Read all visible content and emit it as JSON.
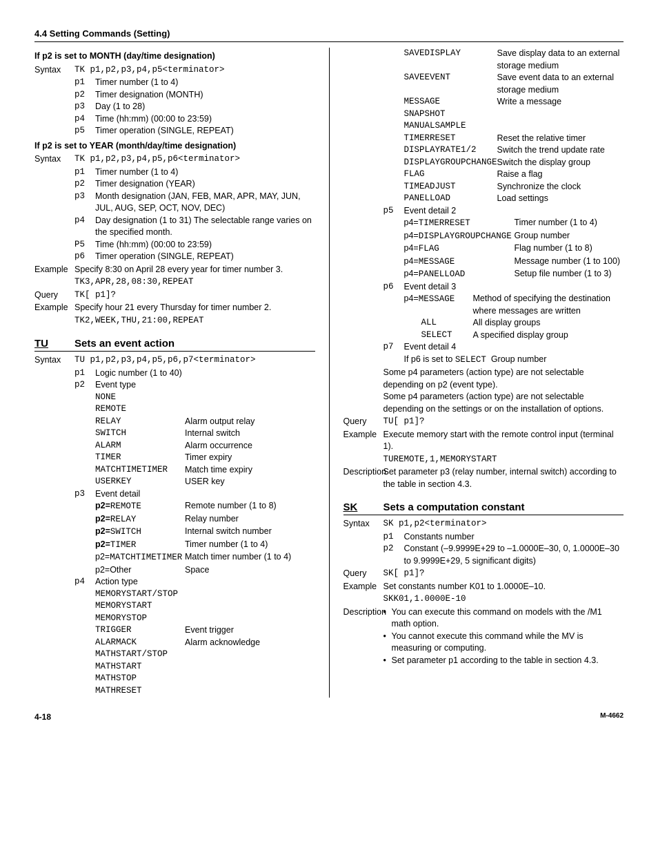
{
  "header": "4.4  Setting Commands (Setting)",
  "month": {
    "title": "If p2 is set to MONTH (day/time designation)",
    "syntax_label": "Syntax",
    "syntax": "TK p1,p2,p3,p4,p5<terminator>",
    "p1": "Timer number (1 to 4)",
    "p2": "Timer designation (MONTH)",
    "p3": "Day (1 to 28)",
    "p4": "Time (hh:mm) (00:00 to 23:59)",
    "p5": "Timer operation (SINGLE, REPEAT)"
  },
  "year": {
    "title": "If p2 is set to YEAR (month/day/time designation)",
    "syntax_label": "Syntax",
    "syntax": "TK p1,p2,p3,p4,p5,p6<terminator>",
    "p1": "Timer number (1 to 4)",
    "p2": "Timer designation (YEAR)",
    "p3": "Month designation (JAN, FEB, MAR, APR, MAY, JUN, JUL, AUG, SEP, OCT, NOV, DEC)",
    "p4": "Day designation (1 to 31)  The selectable range varies on the specified month.",
    "p5": "Time (hh:mm) (00:00 to 23:59)",
    "p6": "Timer operation (SINGLE, REPEAT)",
    "example_label": "Example",
    "example_text": "Specify 8:30 on April 28 every year for timer number 3.",
    "example_cmd": "TK3,APR,28,08:30,REPEAT",
    "query_label": "Query",
    "query_cmd": "TK[ p1]?",
    "example2_label": "Example",
    "example2_text": "Specify hour 21 every Thursday for timer number 2.",
    "example2_cmd": "TK2,WEEK,THU,21:00,REPEAT"
  },
  "tu": {
    "name": "TU",
    "title": "Sets an event action",
    "syntax_label": "Syntax",
    "syntax": "TU p1,p2,p3,p4,p5,p6,p7<terminator>",
    "p1": "Logic number (1 to 40)",
    "p2": "Event type",
    "p2_opts": {
      "NONE": "",
      "REMOTE": "",
      "RELAY": "Alarm output relay",
      "SWITCH": "Internal switch",
      "ALARM": "Alarm occurrence",
      "TIMER": "Timer expiry",
      "MATCHTIMETIMER": "Match time expiry",
      "USERKEY": "USER key"
    },
    "p3": "Event detail",
    "p3_rows": [
      {
        "k": "p2=",
        "kv": "REMOTE",
        "v": "Remote number (1 to 8)"
      },
      {
        "k": "p2=",
        "kv": "RELAY",
        "v": "Relay number"
      },
      {
        "k": "p2=",
        "kv": "SWITCH",
        "v": "Internal switch number"
      },
      {
        "k": "p2=",
        "kv": "TIMER",
        "v": "Timer number (1 to 4)"
      }
    ],
    "p3_match_k": "p2=",
    "p3_match_kv": "MATCHTIMETIMER",
    "p3_match_v": "Match timer number (1 to 4)",
    "p3_other_k": "p2=Other",
    "p3_other_v": "Space",
    "p4": "Action type",
    "p4_opts": {
      "MEMORYSTART/STOP": "",
      "MEMORYSTART": "",
      "MEMORYSTOP": "",
      "TRIGGER": "Event trigger",
      "ALARMACK": "Alarm acknowledge",
      "MATHSTART/STOP": "",
      "MATHSTART": "",
      "MATHSTOP": "",
      "MATHRESET": ""
    }
  },
  "tu2": {
    "p4_opts2": {
      "SAVEDISPLAY": "Save display data to an external storage medium",
      "SAVEEVENT": "Save event data to an external storage medium",
      "MESSAGE": "Write a message",
      "SNAPSHOT": "",
      "MANUALSAMPLE": "",
      "TIMERRESET": "Reset the relative timer",
      "DISPLAYRATE1/2": "Switch the trend update rate",
      "DISPLAYGROUPCHANGE": "Switch the display group",
      "FLAG": "Raise a flag",
      "TIMEADJUST": "Synchronize the clock",
      "PANELLOAD": "Load settings"
    },
    "p5": "Event detail 2",
    "p5_rows": [
      {
        "k": "p4=",
        "kv": "TIMERRESET",
        "v": "Timer number (1 to 4)"
      },
      {
        "k": "p4=",
        "kv": "DISPLAYGROUPCHANGE",
        "v": "Group number"
      },
      {
        "k": "p4=",
        "kv": "FLAG",
        "v": "Flag number (1 to 8)"
      },
      {
        "k": "p4=",
        "kv": "MESSAGE",
        "v": "Message number (1 to 100)"
      },
      {
        "k": "p4=",
        "kv": "PANELLOAD",
        "v": "Setup file number (1 to 3)"
      }
    ],
    "p6": "Event detail 3",
    "p6_row_k": "p4=",
    "p6_row_kv": "MESSAGE",
    "p6_row_v": "Method of specifying the destination where messages are written",
    "p6_all_k": "ALL",
    "p6_all_v": "All display groups",
    "p6_sel_k": "SELECT",
    "p6_sel_v": "A specified display group",
    "p7": "Event detail 4",
    "p7_sel": "If p6 is set to ",
    "p7_sel_kv": "SELECT",
    "p7_sel_v": "Group number",
    "notes": [
      "Some p4 parameters (action type) are not selectable depending on p2 (event type).",
      "Some p4 parameters (action type) are not selectable depending on the settings or on the installation of options."
    ],
    "query_label": "Query",
    "query_cmd": "TU[ p1]?",
    "example_label": "Example",
    "example_text": "Execute memory start with the remote control input (terminal 1).",
    "example_cmd": "TUREMOTE,1,MEMORYSTART",
    "desc_label": "Description",
    "desc_text": "Set parameter p3 (relay number, internal switch) according to the table in section 4.3."
  },
  "sk": {
    "name": "SK",
    "title": "Sets a computation constant",
    "syntax_label": "Syntax",
    "syntax": "SK p1,p2<terminator>",
    "p1": "Constants number",
    "p2": "Constant (–9.9999E+29 to –1.0000E–30, 0, 1.0000E–30 to 9.9999E+29, 5 significant digits)",
    "query_label": "Query",
    "query_cmd": "SK[ p1]?",
    "example_label": "Example",
    "example_text": "Set constants number K01 to 1.0000E–10.",
    "example_cmd": "SKK01,1.0000E-10",
    "desc_label": "Description",
    "bullets": [
      "You can execute this command on models with the /M1 math option.",
      "You cannot execute this command while the MV is measuring or computing.",
      "Set parameter p1 according to the table in section 4.3."
    ]
  },
  "footer": {
    "left": "4-18",
    "right": "M-4662"
  }
}
